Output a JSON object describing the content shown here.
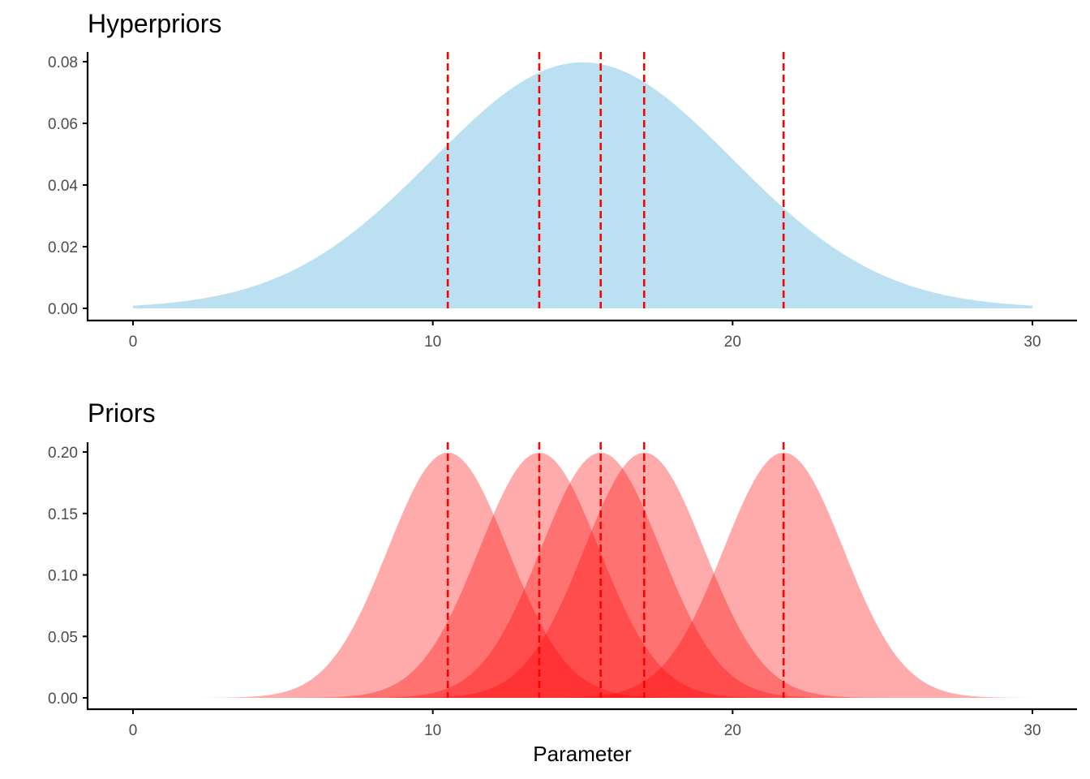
{
  "chart_data": [
    {
      "type": "area",
      "title": "Hyperpriors",
      "xlabel": "",
      "ylabel": "",
      "xlim": [
        0,
        30
      ],
      "ylim": [
        0,
        0.08
      ],
      "x_ticks": [
        "0",
        "10",
        "20",
        "30"
      ],
      "y_ticks": [
        "0.00",
        "0.02",
        "0.04",
        "0.06",
        "0.08"
      ],
      "grid": false,
      "legend": "none",
      "fill_color": "#bae0f1",
      "fill_opacity": 1,
      "series": [
        {
          "distribution": "normal",
          "mean": 15,
          "sd": 5,
          "x_range": [
            0,
            30
          ]
        }
      ],
      "vlines": [
        10.5,
        13.55,
        15.6,
        17.05,
        21.7
      ],
      "vline_color": "#ff0000",
      "vline_style": "dashed"
    },
    {
      "type": "area",
      "title": "Priors",
      "xlabel": "Parameter",
      "ylabel": "",
      "xlim": [
        0,
        30
      ],
      "ylim": [
        0,
        0.2
      ],
      "x_ticks": [
        "0",
        "10",
        "20",
        "30"
      ],
      "y_ticks": [
        "0.00",
        "0.05",
        "0.10",
        "0.15",
        "0.20"
      ],
      "grid": false,
      "legend": "none",
      "fill_color": "#ff0000",
      "fill_opacity": 0.33,
      "series": [
        {
          "distribution": "normal",
          "mean": 10.5,
          "sd": 2,
          "x_range": [
            0,
            30
          ]
        },
        {
          "distribution": "normal",
          "mean": 13.55,
          "sd": 2,
          "x_range": [
            0,
            30
          ]
        },
        {
          "distribution": "normal",
          "mean": 15.6,
          "sd": 2,
          "x_range": [
            0,
            30
          ]
        },
        {
          "distribution": "normal",
          "mean": 17.05,
          "sd": 2,
          "x_range": [
            0,
            30
          ]
        },
        {
          "distribution": "normal",
          "mean": 21.7,
          "sd": 2,
          "x_range": [
            0,
            30
          ]
        }
      ],
      "vlines": [
        10.5,
        13.55,
        15.6,
        17.05,
        21.7
      ],
      "vline_color": "#ff0000",
      "vline_style": "dashed"
    }
  ]
}
